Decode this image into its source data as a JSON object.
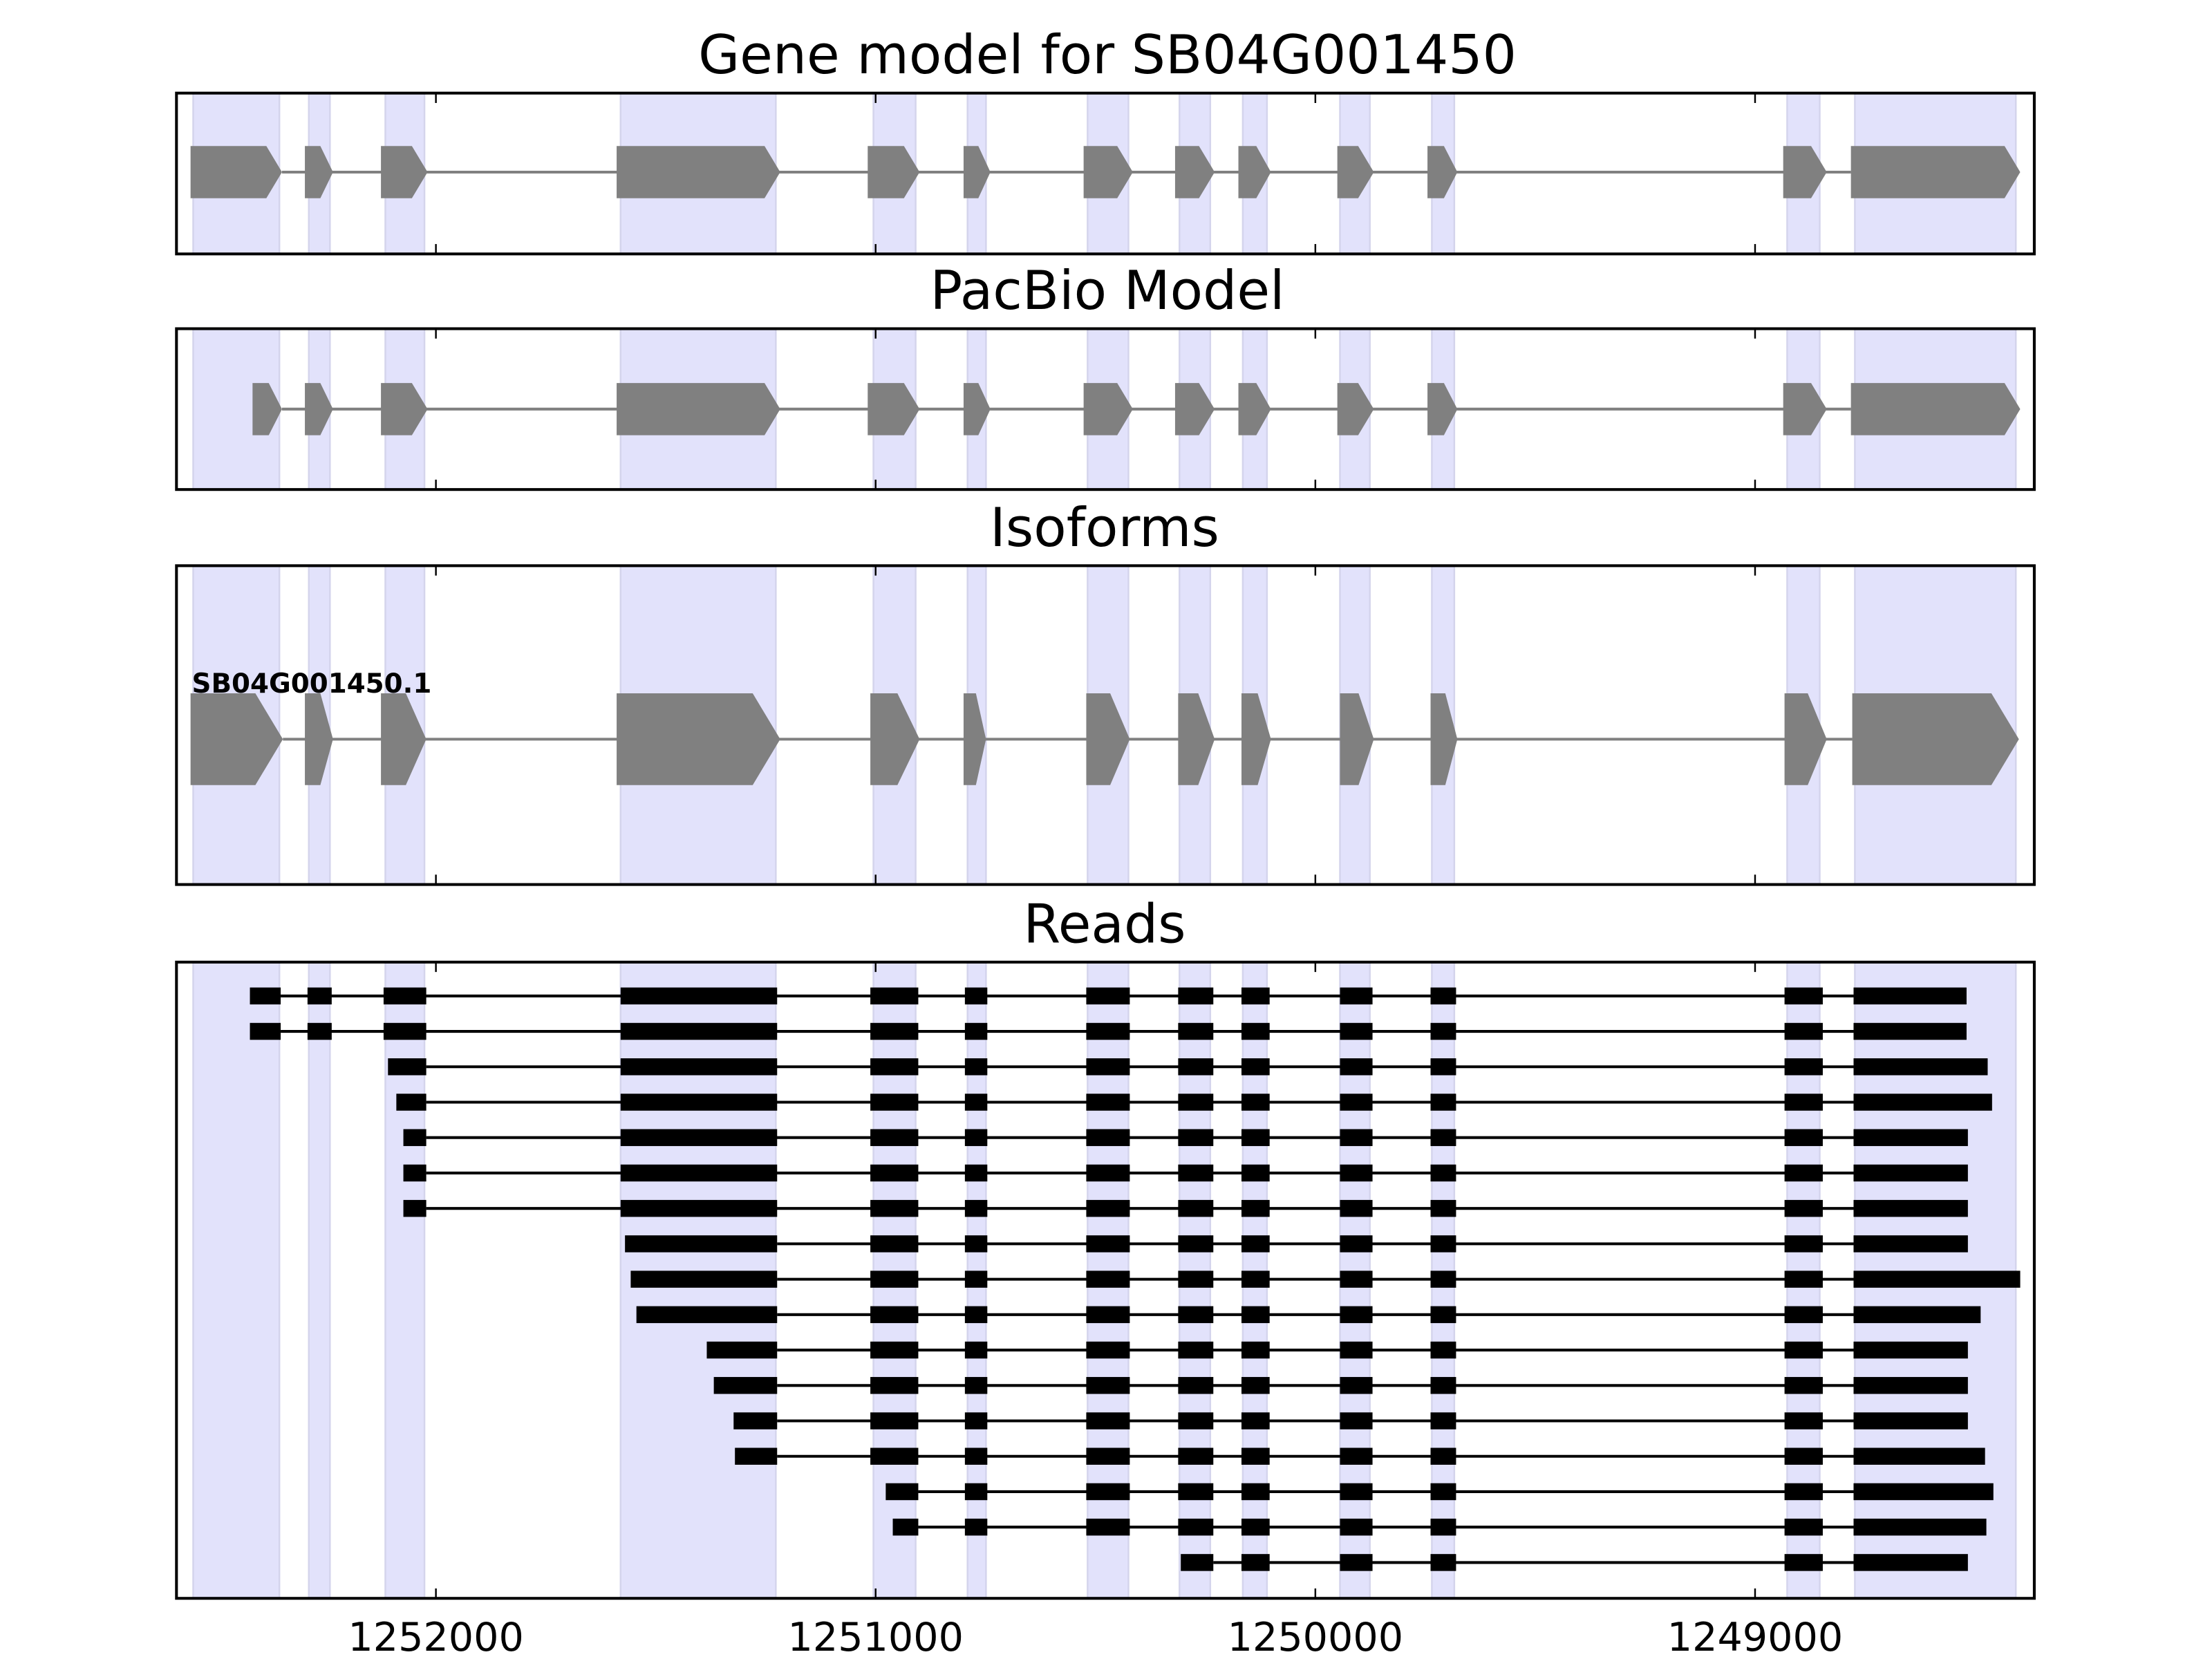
{
  "chart_data": {
    "type": "gene-track",
    "xaxis": {
      "range": [
        1252590,
        1248365
      ],
      "reversed": true,
      "ticks": [
        1252000,
        1251000,
        1250000,
        1249000
      ],
      "tick_labels": [
        "1252000",
        "1251000",
        "1250000",
        "1249000"
      ]
    },
    "colors": {
      "shade": "#e2e2fb",
      "shade_edge": "#d4d4ec",
      "model": "#808080",
      "read": "#000000"
    },
    "exon_regions": [
      [
        1252552,
        1252356
      ],
      [
        1252289,
        1252241
      ],
      [
        1252115,
        1252026
      ],
      [
        1251580,
        1251227
      ],
      [
        1251005,
        1250909
      ],
      [
        1250791,
        1250749
      ],
      [
        1250518,
        1250425
      ],
      [
        1250309,
        1250239
      ],
      [
        1250165,
        1250110
      ],
      [
        1249944,
        1249876
      ],
      [
        1249735,
        1249684
      ],
      [
        1248927,
        1248853
      ],
      [
        1248773,
        1248407
      ]
    ],
    "panels": {
      "gene_model": {
        "title": "Gene model for SB04G001450",
        "exons": [
          [
            1252558,
            1252350
          ],
          [
            1252298,
            1252234
          ],
          [
            1252125,
            1252019
          ],
          [
            1251589,
            1251217
          ],
          [
            1251018,
            1250900
          ],
          [
            1250800,
            1250739
          ],
          [
            1250527,
            1250415
          ],
          [
            1250319,
            1250229
          ],
          [
            1250175,
            1250101
          ],
          [
            1249950,
            1249867
          ],
          [
            1249745,
            1249677
          ],
          [
            1248936,
            1248837
          ],
          [
            1248782,
            1248397
          ]
        ]
      },
      "pacbio": {
        "title": "PacBio Model",
        "exons": [
          [
            1252417,
            1252350
          ],
          [
            1252298,
            1252234
          ],
          [
            1252125,
            1252019
          ],
          [
            1251589,
            1251217
          ],
          [
            1251018,
            1250900
          ],
          [
            1250800,
            1250739
          ],
          [
            1250527,
            1250415
          ],
          [
            1250319,
            1250229
          ],
          [
            1250175,
            1250101
          ],
          [
            1249950,
            1249867
          ],
          [
            1249745,
            1249677
          ],
          [
            1248936,
            1248837
          ],
          [
            1248782,
            1248397
          ]
        ]
      },
      "isoforms": {
        "title": "Isoforms",
        "label": "SB04G001450.1",
        "exons": [
          [
            1252558,
            1252348
          ],
          [
            1252298,
            1252234
          ],
          [
            1252125,
            1252022
          ],
          [
            1251589,
            1251217
          ],
          [
            1251012,
            1250900
          ],
          [
            1250800,
            1250749
          ],
          [
            1250521,
            1250422
          ],
          [
            1250312,
            1250229
          ],
          [
            1250168,
            1250101
          ],
          [
            1249944,
            1249867
          ],
          [
            1249738,
            1249677
          ],
          [
            1248933,
            1248837
          ],
          [
            1248779,
            1248400
          ]
        ]
      },
      "reads": {
        "title": "Reads",
        "read_exons": [
          [
            1252423,
            1252353
          ],
          [
            1252292,
            1252237
          ],
          [
            1252119,
            1252022
          ],
          [
            1251580,
            1251224
          ],
          [
            1251012,
            1250903
          ],
          [
            1250797,
            1250746
          ],
          [
            1250521,
            1250422
          ],
          [
            1250312,
            1250232
          ],
          [
            1250168,
            1250104
          ],
          [
            1249944,
            1249870
          ],
          [
            1249738,
            1249680
          ],
          [
            1248933,
            1248846
          ],
          [
            1248776,
            1248519
          ]
        ],
        "reads": [
          {
            "start": 1252423,
            "end": 1248519,
            "first_exon": 0
          },
          {
            "start": 1252423,
            "end": 1248519,
            "first_exon": 0
          },
          {
            "start": 1252109,
            "end": 1248471,
            "first_exon": 2
          },
          {
            "start": 1252090,
            "end": 1248461,
            "first_exon": 2
          },
          {
            "start": 1252074,
            "end": 1248516,
            "first_exon": 2
          },
          {
            "start": 1252074,
            "end": 1248516,
            "first_exon": 2
          },
          {
            "start": 1252074,
            "end": 1248516,
            "first_exon": 2
          },
          {
            "start": 1251570,
            "end": 1248516,
            "first_exon": 3
          },
          {
            "start": 1251557,
            "end": 1248397,
            "first_exon": 3
          },
          {
            "start": 1251544,
            "end": 1248487,
            "first_exon": 3
          },
          {
            "start": 1251384,
            "end": 1248516,
            "first_exon": 3
          },
          {
            "start": 1251368,
            "end": 1248516,
            "first_exon": 3
          },
          {
            "start": 1251323,
            "end": 1248516,
            "first_exon": 3
          },
          {
            "start": 1251320,
            "end": 1248477,
            "first_exon": 3
          },
          {
            "start": 1250977,
            "end": 1248458,
            "first_exon": 4
          },
          {
            "start": 1250961,
            "end": 1248474,
            "first_exon": 4
          },
          {
            "start": 1250306,
            "end": 1248516,
            "first_exon": 7
          }
        ]
      }
    }
  }
}
